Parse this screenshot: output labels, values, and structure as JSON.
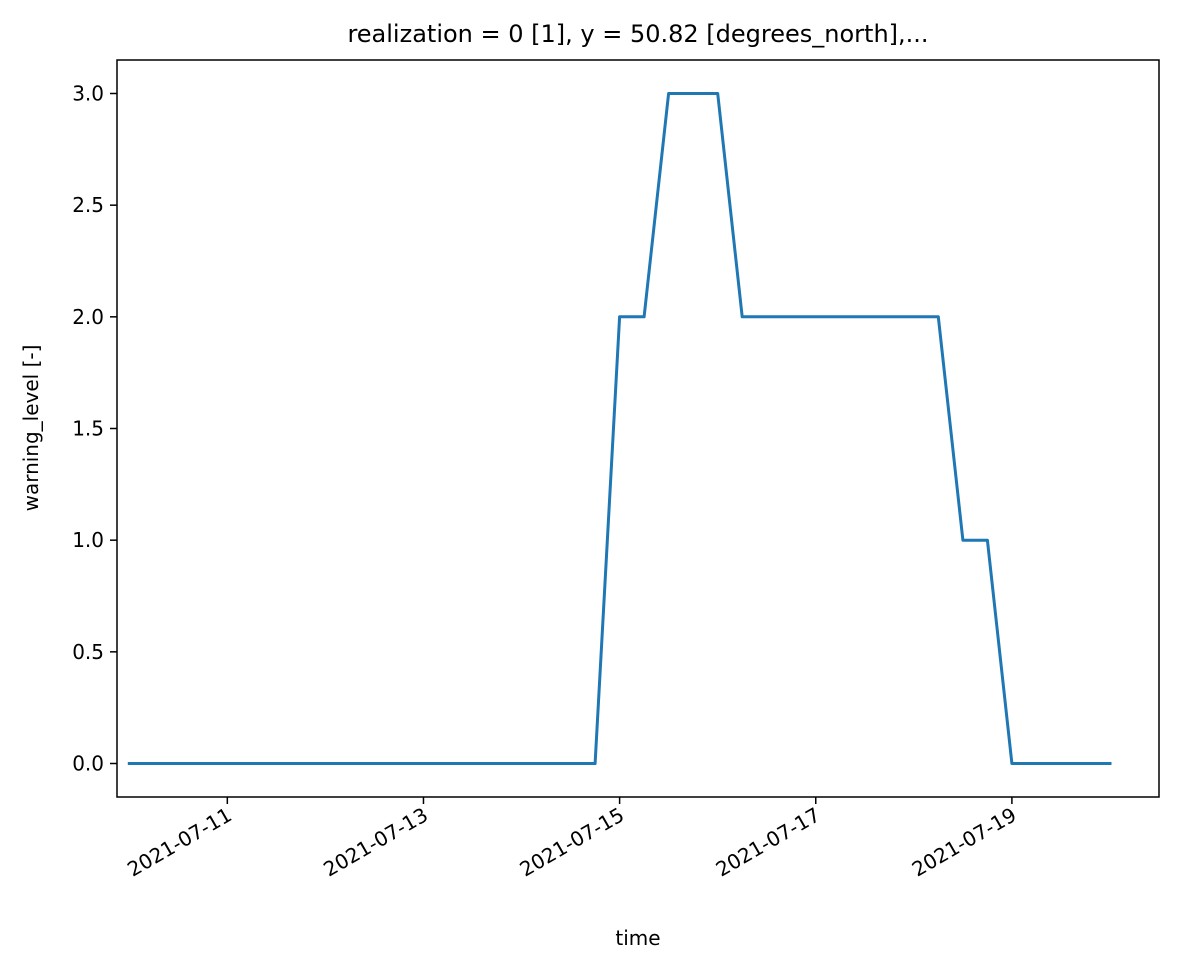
{
  "chart_data": {
    "type": "line",
    "title": "realization = 0 [1], y = 50.82 [degrees_north],...",
    "xlabel": "time",
    "ylabel": "warning_level [-]",
    "x_ticks": [
      "2021-07-11",
      "2021-07-13",
      "2021-07-15",
      "2021-07-17",
      "2021-07-19"
    ],
    "y_ticks": [
      "0.0",
      "0.5",
      "1.0",
      "1.5",
      "2.0",
      "2.5",
      "3.0"
    ],
    "xlim": [
      "2021-07-09T21:00",
      "2021-07-20T12:00"
    ],
    "ylim": [
      -0.15,
      3.15
    ],
    "grid": false,
    "series": [
      {
        "color": "#1f77b4",
        "x": [
          "2021-07-10T00:00",
          "2021-07-14T18:00",
          "2021-07-15T00:00",
          "2021-07-15T06:00",
          "2021-07-15T12:00",
          "2021-07-16T00:00",
          "2021-07-16T06:00",
          "2021-07-18T06:00",
          "2021-07-18T12:00",
          "2021-07-18T18:00",
          "2021-07-19T00:00",
          "2021-07-20T00:00"
        ],
        "y": [
          0,
          0,
          2,
          2,
          3,
          3,
          2,
          2,
          1,
          1,
          0,
          0
        ]
      }
    ]
  }
}
